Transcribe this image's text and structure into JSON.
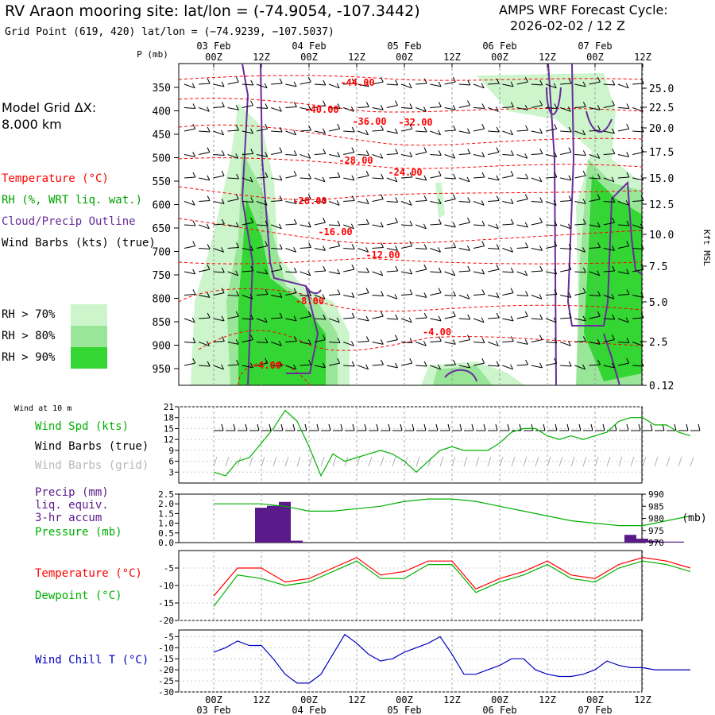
{
  "header": {
    "title": "RV Araon mooring site:  lat/lon = (-74.9054, -107.3442)",
    "subtitle": "Grid Point (619, 420) lat/lon = (−74.9239, −107.5037)",
    "cycle_line1": "AMPS WRF Forecast Cycle:",
    "cycle_line2": "2026-02-02 / 12  Z"
  },
  "model_grid": {
    "line1": "Model Grid ΔX:",
    "line2": " 8.000 km"
  },
  "colors": {
    "temperature": "#ff0000",
    "rh": "#00a000",
    "cloud": "#6a2c9a",
    "wind": "#000000",
    "grid_wind": "#b0b0b0",
    "pressure": "#00b000",
    "precip": "#5a1a8a",
    "windchill": "#0000c0",
    "rh70": "#ccf5cc",
    "rh80": "#99e699",
    "rh90": "#33d633"
  },
  "legend": {
    "temperature": "Temperature (°C)",
    "rh": "RH (%, WRT liq. wat.)",
    "cloud": "Cloud/Precip Outline",
    "wind": "Wind Barbs (kts) (true)",
    "rh70": "RH > 70%",
    "rh80": "RH > 80%",
    "rh90": "RH > 90%"
  },
  "time_axis": {
    "hour_labels": [
      "00Z",
      "12Z",
      "00Z",
      "12Z",
      "00Z",
      "12Z",
      "00Z",
      "12Z",
      "00Z",
      "12Z"
    ],
    "day_labels": [
      "03 Feb",
      "04 Feb",
      "05 Feb",
      "06 Feb",
      "07 Feb"
    ]
  },
  "panel_labels": {
    "p_axis": "P (mb)",
    "kft": "Kft MSL",
    "wind10": "Wind at 10 m",
    "windspd": "Wind Spd (kts)",
    "windbarbs_true": "Wind Barbs (true)",
    "windbarbs_grid": "Wind Barbs (grid)",
    "precip1": "Precip (mm)",
    "precip2": "liq. equiv.",
    "precip3": "3-hr accum",
    "pressure": "Pressure (mb)",
    "mb": "(mb)",
    "temperature": "Temperature (°C)",
    "dewpoint": "Dewpoint (°C)",
    "windchill": "Wind Chill T (°C)"
  },
  "chart_data": [
    {
      "type": "heatmap",
      "p_ticks": [
        "350",
        "400",
        "450",
        "500",
        "550",
        "600",
        "650",
        "700",
        "750",
        "800",
        "850",
        "900",
        "950"
      ],
      "kft_ticks": [
        "25.0",
        "22.5",
        "20.0",
        "17.5",
        "15.0",
        "12.5",
        "10.0",
        "7.5",
        "5.0",
        "2.5",
        "0.12"
      ],
      "temperature_contour_labels": [
        "-44.00",
        "-40.00",
        "-36.00",
        "-32.00",
        "-28.00",
        "-24.00",
        "-20.00",
        "-16.00",
        "-12.00",
        "-8.00",
        "-4.00",
        "-4.00"
      ],
      "rh_thresholds": [
        "70",
        "80",
        "90"
      ]
    },
    {
      "type": "line",
      "name": "wind_speed",
      "y_ticks": [
        "21",
        "18",
        "15",
        "12",
        "9",
        "6",
        "3"
      ],
      "ylim": [
        0,
        21
      ],
      "x_hours": [
        0,
        3,
        6,
        9,
        12,
        15,
        18,
        21,
        24,
        27,
        30,
        33,
        36,
        39,
        42,
        45,
        48,
        51,
        54,
        57,
        60,
        63,
        66,
        69,
        72,
        75,
        78,
        81,
        84,
        87,
        90,
        93,
        96,
        99,
        102,
        105,
        108,
        111,
        114,
        117,
        120
      ],
      "values": [
        3,
        2,
        6,
        7,
        11,
        15,
        20,
        17,
        10,
        2,
        8,
        6,
        7,
        8,
        9,
        8,
        6,
        3,
        6,
        9,
        10,
        9,
        9,
        9,
        11,
        14,
        15,
        15,
        13,
        12,
        13,
        12,
        13,
        14,
        17,
        18,
        18,
        16,
        16,
        14,
        13
      ]
    },
    {
      "type": "bar",
      "name": "precip_and_pressure",
      "precip_ticks": [
        "2.5",
        "2.0",
        "1.5",
        "1.0",
        "0.5",
        "0.0"
      ],
      "pressure_ticks": [
        "990",
        "985",
        "980",
        "975",
        "970"
      ],
      "x_hours": [
        12,
        15,
        18,
        21,
        105,
        108,
        111,
        114,
        117
      ],
      "precip_mm": [
        1.8,
        1.9,
        2.1,
        0.1,
        0.4,
        0.2,
        0.1,
        0.05,
        0.05
      ],
      "pressure_x_hours": [
        0,
        6,
        12,
        18,
        24,
        30,
        36,
        42,
        48,
        54,
        60,
        66,
        72,
        78,
        84,
        90,
        96,
        102,
        108,
        114,
        120
      ],
      "pressure_mb": [
        986,
        986,
        986,
        985,
        983,
        983,
        984,
        985,
        987,
        988,
        988,
        987,
        985,
        983,
        981,
        979,
        978,
        977,
        977,
        979,
        981
      ]
    },
    {
      "type": "line",
      "name": "temperature_dewpoint",
      "y_ticks": [
        "-5",
        "-10",
        "-15",
        "-20"
      ],
      "ylim": [
        -20,
        0
      ],
      "x_hours": [
        0,
        6,
        12,
        18,
        24,
        30,
        36,
        42,
        48,
        54,
        60,
        66,
        72,
        78,
        84,
        90,
        96,
        102,
        108,
        114,
        120
      ],
      "temperature": [
        -13,
        -5,
        -5,
        -9,
        -8,
        -5,
        -2,
        -7,
        -6,
        -3,
        -3,
        -11,
        -8,
        -6,
        -3,
        -7,
        -8,
        -4,
        -2,
        -3,
        -5
      ],
      "dewpoint": [
        -16,
        -7,
        -8,
        -10,
        -9,
        -6,
        -3,
        -8,
        -8,
        -4,
        -4,
        -12,
        -9,
        -7,
        -4,
        -8,
        -9,
        -5,
        -3,
        -4,
        -6
      ]
    },
    {
      "type": "line",
      "name": "wind_chill",
      "y_ticks": [
        "-5",
        "-10",
        "-15",
        "-20",
        "-25",
        "-30"
      ],
      "ylim": [
        -30,
        -2
      ],
      "x_hours": [
        0,
        3,
        6,
        9,
        12,
        15,
        18,
        21,
        24,
        27,
        30,
        33,
        36,
        39,
        42,
        45,
        48,
        51,
        54,
        57,
        60,
        63,
        66,
        69,
        72,
        75,
        78,
        81,
        84,
        87,
        90,
        93,
        96,
        99,
        102,
        105,
        108,
        111,
        114,
        117,
        120
      ],
      "values": [
        -12,
        -10,
        -7,
        -9,
        -9,
        -15,
        -22,
        -26,
        -26,
        -22,
        -13,
        -4,
        -8,
        -13,
        -16,
        -15,
        -12,
        -10,
        -8,
        -5,
        -13,
        -22,
        -22,
        -20,
        -18,
        -15,
        -15,
        -20,
        -22,
        -23,
        -23,
        -22,
        -20,
        -16,
        -18,
        -19,
        -19,
        -20,
        -20,
        -20,
        -20
      ]
    }
  ]
}
